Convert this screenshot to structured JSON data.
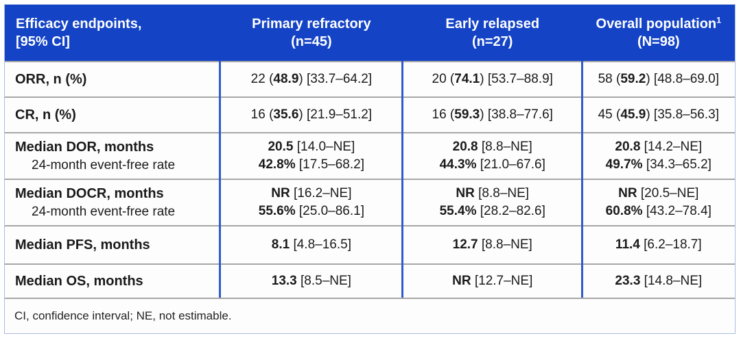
{
  "colors": {
    "header_bg": "#1443c6",
    "header_text": "#ffffff",
    "column_divider_blue": "#2e5bce",
    "row_separator_gray": "#a6a6a6",
    "body_text": "#1a1a1a"
  },
  "table": {
    "header": {
      "endpoints_line1": "Efficacy endpoints,",
      "endpoints_line2": "[95% CI]",
      "columns": [
        {
          "label": "Primary refractory",
          "sup": "",
          "n": "(n=45)"
        },
        {
          "label": "Early relapsed",
          "sup": "",
          "n": "(n=27)"
        },
        {
          "label": "Overall population",
          "sup": "1",
          "n": "(N=98)"
        }
      ]
    },
    "rows": [
      {
        "label": "ORR, n (%)",
        "sublabel": "",
        "cells": [
          {
            "lines": [
              {
                "pre": "22 (",
                "b": "48.9",
                "post": ") [33.7–64.2]"
              }
            ]
          },
          {
            "lines": [
              {
                "pre": "20 (",
                "b": "74.1",
                "post": ") [53.7–88.9]"
              }
            ]
          },
          {
            "lines": [
              {
                "pre": "58 (",
                "b": "59.2",
                "post": ") [48.8–69.0]"
              }
            ]
          }
        ]
      },
      {
        "label": "CR, n (%)",
        "sublabel": "",
        "cells": [
          {
            "lines": [
              {
                "pre": "16 (",
                "b": "35.6",
                "post": ") [21.9–51.2]"
              }
            ]
          },
          {
            "lines": [
              {
                "pre": "16 (",
                "b": "59.3",
                "post": ") [38.8–77.6]"
              }
            ]
          },
          {
            "lines": [
              {
                "pre": "45 (",
                "b": "45.9",
                "post": ") [35.8–56.3]"
              }
            ]
          }
        ]
      },
      {
        "label": "Median DOR, months",
        "sublabel": "24-month event-free rate",
        "cells": [
          {
            "lines": [
              {
                "pre": "",
                "b": "20.5",
                "post": " [14.0–NE]"
              },
              {
                "pre": "",
                "b": "42.8%",
                "post": " [17.5–68.2]"
              }
            ]
          },
          {
            "lines": [
              {
                "pre": "",
                "b": "20.8",
                "post": " [8.8–NE]"
              },
              {
                "pre": "",
                "b": "44.3%",
                "post": " [21.0–67.6]"
              }
            ]
          },
          {
            "lines": [
              {
                "pre": "",
                "b": "20.8",
                "post": " [14.2–NE]"
              },
              {
                "pre": "",
                "b": "49.7%",
                "post": " [34.3–65.2]"
              }
            ]
          }
        ]
      },
      {
        "label": "Median DOCR, months",
        "sublabel": "24-month event-free rate",
        "cells": [
          {
            "lines": [
              {
                "pre": "",
                "b": "NR",
                "post": " [16.2–NE]"
              },
              {
                "pre": "",
                "b": "55.6%",
                "post": " [25.0–86.1]"
              }
            ]
          },
          {
            "lines": [
              {
                "pre": "",
                "b": "NR",
                "post": " [8.8–NE]"
              },
              {
                "pre": "",
                "b": "55.4%",
                "post": " [28.2–82.6]"
              }
            ]
          },
          {
            "lines": [
              {
                "pre": "",
                "b": "NR",
                "post": " [20.5–NE]"
              },
              {
                "pre": "",
                "b": "60.8%",
                "post": " [43.2–78.4]"
              }
            ]
          }
        ]
      },
      {
        "label": "Median PFS, months",
        "sublabel": "",
        "cells": [
          {
            "lines": [
              {
                "pre": "",
                "b": "8.1",
                "post": " [4.8–16.5]"
              }
            ]
          },
          {
            "lines": [
              {
                "pre": "",
                "b": "12.7",
                "post": " [8.8–NE]"
              }
            ]
          },
          {
            "lines": [
              {
                "pre": "",
                "b": "11.4",
                "post": " [6.2–18.7]"
              }
            ]
          }
        ]
      },
      {
        "label": "Median OS, months",
        "sublabel": "",
        "cells": [
          {
            "lines": [
              {
                "pre": "",
                "b": "13.3",
                "post": " [8.5–NE]"
              }
            ]
          },
          {
            "lines": [
              {
                "pre": "",
                "b": "NR",
                "post": " [12.7–NE]"
              }
            ]
          },
          {
            "lines": [
              {
                "pre": "",
                "b": "23.3",
                "post": " [14.8–NE]"
              }
            ]
          }
        ]
      }
    ],
    "footnote": "CI, confidence interval; NE, not estimable."
  },
  "chart_data": {
    "type": "table",
    "title": "Efficacy endpoints, [95% CI]",
    "columns": [
      "Efficacy endpoints, [95% CI]",
      "Primary refractory (n=45)",
      "Early relapsed (n=27)",
      "Overall population¹ (N=98)"
    ],
    "rows": [
      [
        "ORR, n (%)",
        "22 (48.9) [33.7–64.2]",
        "20 (74.1) [53.7–88.9]",
        "58 (59.2) [48.8–69.0]"
      ],
      [
        "CR, n (%)",
        "16 (35.6) [21.9–51.2]",
        "16 (59.3) [38.8–77.6]",
        "45 (45.9) [35.8–56.3]"
      ],
      [
        "Median DOR, months",
        "20.5 [14.0–NE]",
        "20.8 [8.8–NE]",
        "20.8 [14.2–NE]"
      ],
      [
        "DOR 24-month event-free rate",
        "42.8% [17.5–68.2]",
        "44.3% [21.0–67.6]",
        "49.7% [34.3–65.2]"
      ],
      [
        "Median DOCR, months",
        "NR [16.2–NE]",
        "NR [8.8–NE]",
        "NR [20.5–NE]"
      ],
      [
        "DOCR 24-month event-free rate",
        "55.6% [25.0–86.1]",
        "55.4% [28.2–82.6]",
        "60.8% [43.2–78.4]"
      ],
      [
        "Median PFS, months",
        "8.1 [4.8–16.5]",
        "12.7 [8.8–NE]",
        "11.4 [6.2–18.7]"
      ],
      [
        "Median OS, months",
        "13.3 [8.5–NE]",
        "NR [12.7–NE]",
        "23.3 [14.8–NE]"
      ]
    ],
    "footnote": "CI, confidence interval; NE, not estimable."
  }
}
